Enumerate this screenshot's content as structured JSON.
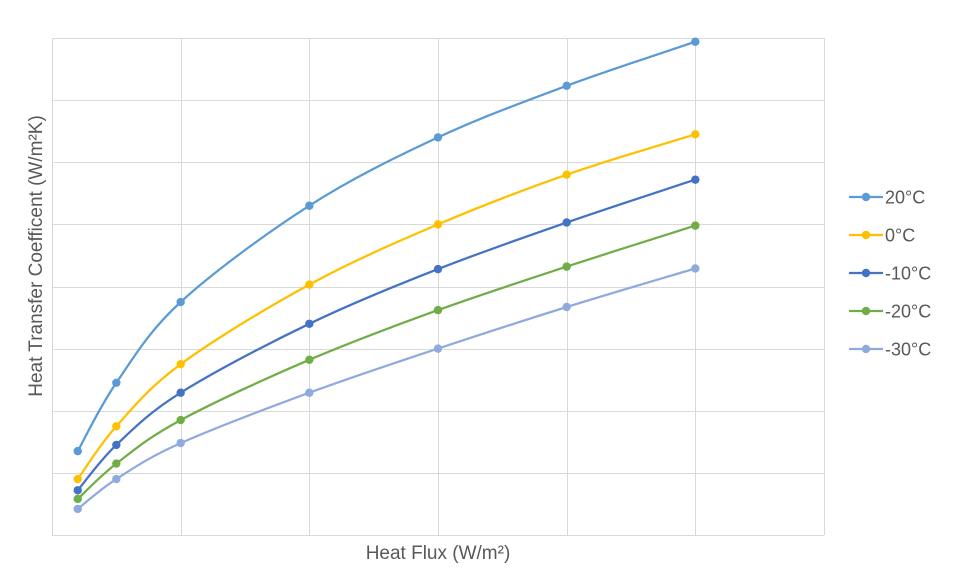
{
  "chart_data": {
    "type": "line",
    "title": "",
    "xlabel": "Heat Flux (W/m²)",
    "ylabel": "Heat Transfer Coefficent (W/m²K)",
    "x": [
      1,
      4,
      9,
      19,
      29,
      39,
      49
    ],
    "xlim": [
      -1,
      59
    ],
    "ylim": [
      0,
      8
    ],
    "grid": true,
    "legend_position": "right",
    "series": [
      {
        "name": "20°C",
        "color": "#5b9bd5",
        "values": [
          1.35,
          2.45,
          3.75,
          5.3,
          6.4,
          7.23,
          7.94
        ]
      },
      {
        "name": "0°C",
        "color": "#ffc000",
        "values": [
          0.9,
          1.75,
          2.75,
          4.03,
          5.0,
          5.8,
          6.45
        ]
      },
      {
        "name": "-10°C",
        "color": "#4472c4",
        "values": [
          0.72,
          1.45,
          2.29,
          3.4,
          4.28,
          5.03,
          5.72
        ]
      },
      {
        "name": "-20°C",
        "color": "#70ad47",
        "values": [
          0.58,
          1.15,
          1.85,
          2.82,
          3.62,
          4.32,
          4.98
        ]
      },
      {
        "name": "-30°C",
        "color": "#8faadc",
        "values": [
          0.42,
          0.9,
          1.48,
          2.29,
          3.0,
          3.67,
          4.29
        ]
      }
    ]
  }
}
